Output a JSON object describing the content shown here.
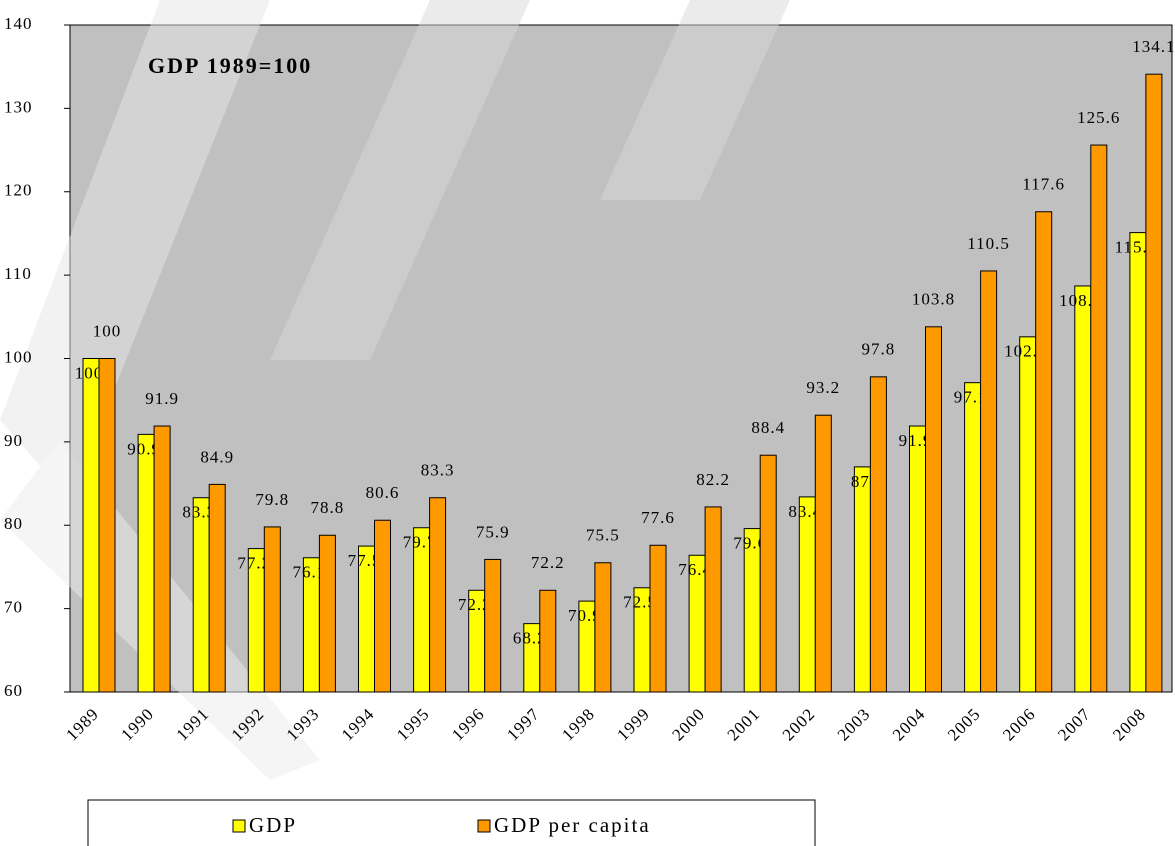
{
  "chart_data": {
    "type": "bar",
    "title": "GDP 1989=100",
    "categories": [
      "1989",
      "1990",
      "1991",
      "1992",
      "1993",
      "1994",
      "1995",
      "1996",
      "1997",
      "1998",
      "1999",
      "2000",
      "2001",
      "2002",
      "2003",
      "2004",
      "2005",
      "2006",
      "2007",
      "2008"
    ],
    "series": [
      {
        "name": "GDP",
        "color": "#ffff00",
        "values": [
          100,
          90.9,
          83.3,
          77.2,
          76.1,
          77.5,
          79.7,
          72.2,
          68.2,
          70.9,
          72.5,
          76.4,
          79.6,
          83.4,
          87,
          91.9,
          97.1,
          102.6,
          108.7,
          115.1
        ]
      },
      {
        "name": "GDP per capita",
        "color": "#ff9900",
        "values": [
          100,
          91.9,
          84.9,
          79.8,
          78.8,
          80.6,
          83.3,
          75.9,
          72.2,
          75.5,
          77.6,
          82.2,
          88.4,
          93.2,
          97.8,
          103.8,
          110.5,
          117.6,
          125.6,
          134.1
        ]
      }
    ],
    "ylim": [
      60,
      140
    ],
    "yticks": [
      60,
      70,
      80,
      90,
      100,
      110,
      120,
      130,
      140
    ]
  }
}
